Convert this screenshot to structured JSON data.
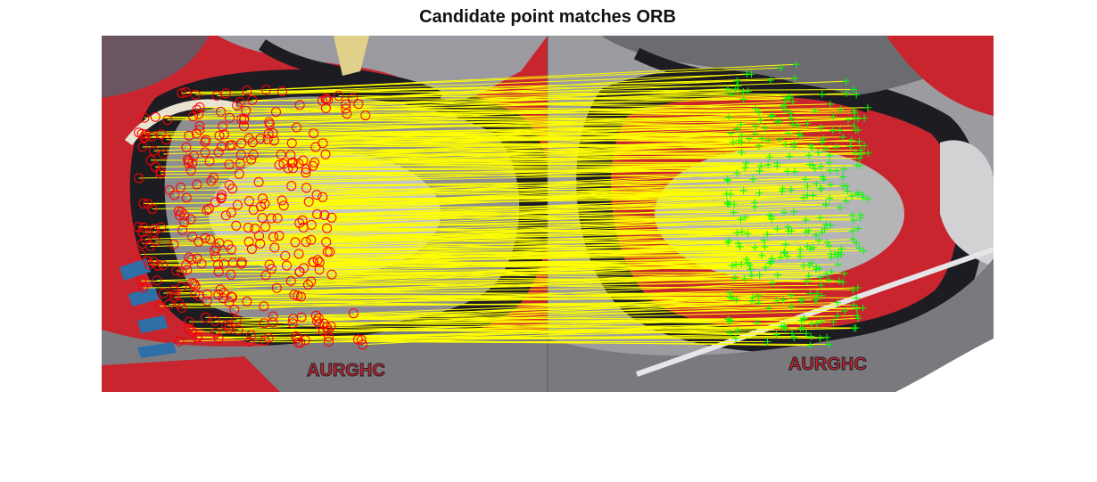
{
  "figure": {
    "title": "Candidate point matches ORB"
  },
  "overlay": {
    "match_line_color": "#ffff00",
    "left_marker": "red-circle",
    "left_marker_color": "#ff0000",
    "right_marker": "green-plus",
    "right_marker_color": "#00ff00"
  },
  "scene": {
    "left_image": "graffiti wall, color",
    "right_image": "graffiti wall, grayscale with red accents",
    "painted_text_left": "AURGHC",
    "painted_text_right": "AURGHC",
    "colors": {
      "red": "#c8252f",
      "dark": "#1d1c22",
      "gray": "#8e8e92",
      "light_gray": "#c4c4c6",
      "cream": "#e9e3d2",
      "blue": "#2e6fa8",
      "yellow": "#e0d08a"
    }
  }
}
